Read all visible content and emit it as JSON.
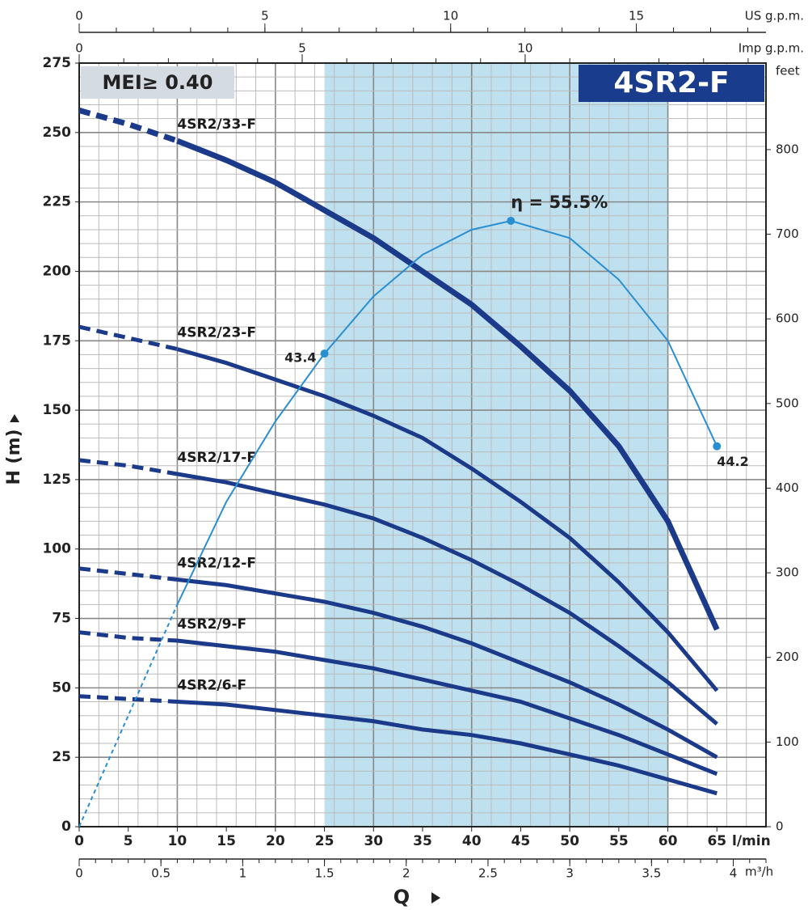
{
  "chart_data": {
    "type": "line",
    "badge": "MEI≥ 0.40",
    "title": "4SR2-F",
    "x_label": "Q",
    "y_label": "H (m)",
    "x_unit": "l/min",
    "y2_unit": "feet",
    "x": [
      0,
      5,
      10,
      15,
      20,
      25,
      30,
      35,
      40,
      45,
      50,
      55,
      60,
      65
    ],
    "xlim": [
      0,
      70
    ],
    "xticks": [
      0,
      5,
      10,
      15,
      20,
      25,
      30,
      35,
      40,
      45,
      50,
      55,
      60,
      65
    ],
    "ylim": [
      0,
      275
    ],
    "yticks": [
      0,
      25,
      50,
      75,
      100,
      125,
      150,
      175,
      200,
      225,
      250,
      275
    ],
    "y2lim": [
      0,
      902.2
    ],
    "y2ticks": [
      0,
      100,
      200,
      300,
      400,
      500,
      600,
      700,
      800
    ],
    "grid": true,
    "grid_x": [
      0,
      2,
      4,
      6,
      8,
      10,
      12,
      14,
      16,
      18,
      20,
      22,
      24,
      26,
      28,
      30,
      32,
      34,
      36,
      38,
      40,
      42,
      44,
      46,
      48,
      50,
      52,
      54,
      56,
      58,
      60,
      62,
      64,
      66,
      68,
      70
    ],
    "grid_y": [
      0,
      5,
      10,
      15,
      20,
      25,
      30,
      35,
      40,
      45,
      50,
      55,
      60,
      65,
      70,
      75,
      80,
      85,
      90,
      95,
      100,
      105,
      110,
      115,
      120,
      125,
      130,
      135,
      140,
      145,
      150,
      155,
      160,
      165,
      170,
      175,
      180,
      185,
      190,
      195,
      200,
      205,
      210,
      215,
      220,
      225,
      230,
      235,
      240,
      245,
      250,
      255,
      260,
      265,
      270,
      275
    ],
    "recommended_range": [
      25,
      60
    ],
    "range_color": "#bfe0ee",
    "dashed_until": 10,
    "curve_color": "#1c3a8a",
    "series": [
      {
        "name": "4SR2/33-F",
        "values": [
          258,
          253,
          247,
          240,
          232,
          222,
          212,
          200,
          188,
          173,
          157,
          137,
          110,
          71
        ]
      },
      {
        "name": "4SR2/23-F",
        "values": [
          180,
          176,
          172,
          167,
          161,
          155,
          148,
          140,
          129,
          117,
          104,
          88,
          70,
          49
        ]
      },
      {
        "name": "4SR2/17-F",
        "values": [
          132,
          130,
          127,
          124,
          120,
          116,
          111,
          104,
          96,
          87,
          77,
          65,
          52,
          37
        ]
      },
      {
        "name": "4SR2/12-F",
        "values": [
          93,
          91,
          89,
          87,
          84,
          81,
          77,
          72,
          66,
          59,
          52,
          44,
          35,
          25
        ]
      },
      {
        "name": "4SR2/9-F",
        "values": [
          70,
          68,
          67,
          65,
          63,
          60,
          57,
          53,
          49,
          45,
          39,
          33,
          26,
          19
        ]
      },
      {
        "name": "4SR2/6-F",
        "values": [
          47,
          46,
          45,
          44,
          42,
          40,
          38,
          35,
          33,
          30,
          26,
          22,
          17,
          12
        ]
      }
    ],
    "efficiency": {
      "color": "#2a8fd0",
      "x": [
        0,
        5,
        10,
        15,
        20,
        25,
        30,
        35,
        40,
        44,
        50,
        55,
        60,
        65
      ],
      "values": [
        0,
        40,
        80,
        117,
        146,
        170.4,
        191,
        206,
        215,
        218.2,
        212,
        197,
        175,
        137
      ],
      "markers": [
        {
          "x": 25,
          "value": 170.4,
          "label": "43.4"
        },
        {
          "x": 44,
          "value": 218.2,
          "label": "η = 55.5%"
        },
        {
          "x": 65,
          "value": 137,
          "label": "44.2"
        }
      ]
    },
    "top_axes": [
      {
        "unit": "US g.p.m.",
        "lim": [
          0,
          18.49
        ],
        "ticks": [
          0,
          5,
          10,
          15
        ],
        "minor_ticks": [
          0,
          1,
          2,
          3,
          4,
          5,
          6,
          7,
          8,
          9,
          10,
          11,
          12,
          13,
          14,
          15,
          16,
          17,
          18
        ]
      },
      {
        "unit": "Imp g.p.m.",
        "lim": [
          0,
          15.4
        ],
        "ticks": [
          0,
          5,
          10
        ],
        "minor_ticks": [
          0,
          1,
          2,
          3,
          4,
          5,
          6,
          7,
          8,
          9,
          10,
          11,
          12,
          13,
          14,
          15
        ]
      }
    ],
    "bottom_axis": {
      "unit": "m³/h",
      "lim": [
        0,
        4.2
      ],
      "ticks": [
        0,
        0.5,
        1,
        1.5,
        2,
        2.5,
        3,
        3.5,
        4
      ],
      "minor_ticks": [
        0,
        0.1,
        0.2,
        0.3,
        0.4,
        0.5,
        0.6,
        0.7,
        0.8,
        0.9,
        1,
        1.1,
        1.2,
        1.3,
        1.4,
        1.5,
        1.6,
        1.7,
        1.8,
        1.9,
        2,
        2.1,
        2.2,
        2.3,
        2.4,
        2.5,
        2.6,
        2.7,
        2.8,
        2.9,
        3,
        3.1,
        3.2,
        3.3,
        3.4,
        3.5,
        3.6,
        3.7,
        3.8,
        3.9,
        4,
        4.1,
        4.2
      ]
    }
  }
}
